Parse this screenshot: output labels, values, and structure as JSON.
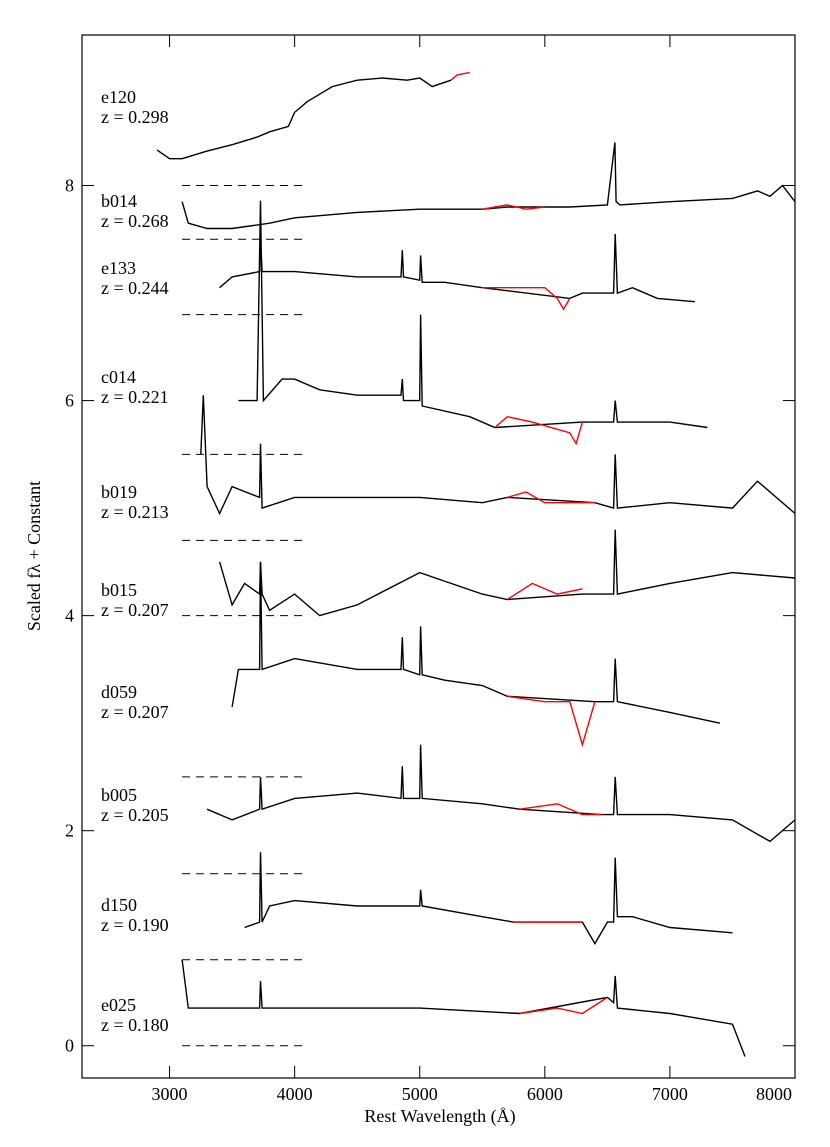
{
  "chart_data": {
    "type": "spectra",
    "xlabel": "Rest Wavelength (Å)",
    "ylabel": "Scaled fλ + Constant",
    "xlim": [
      2300,
      8000
    ],
    "ylim": [
      -0.3,
      9.4
    ],
    "xticks": [
      3000,
      4000,
      5000,
      6000,
      7000,
      8000
    ],
    "yticks": [
      0,
      2,
      4,
      6,
      8
    ],
    "baselines": [
      8.0,
      7.5,
      6.8,
      5.5,
      4.7,
      4.0,
      2.5,
      1.6,
      0.8,
      0.0
    ],
    "baseline_xrange": [
      3100,
      4100
    ],
    "series": [
      {
        "name": "e120",
        "redshift": "z = 0.298",
        "color": "#000000",
        "red_color": "#ff0000",
        "x": [
          2900,
          3000,
          3100,
          3300,
          3500,
          3700,
          3800,
          3950,
          4000,
          4100,
          4300,
          4500,
          4700,
          4900,
          5000,
          5100,
          5250
        ],
        "values": [
          8.33,
          8.25,
          8.25,
          8.32,
          8.38,
          8.45,
          8.5,
          8.55,
          8.68,
          8.78,
          8.92,
          8.98,
          9.0,
          8.98,
          9.0,
          8.92,
          8.98
        ],
        "red_x": [
          5250,
          5300,
          5400
        ],
        "red_values": [
          8.98,
          9.03,
          9.05
        ]
      },
      {
        "name": "b014",
        "redshift": "z = 0.268",
        "color": "#000000",
        "red_color": "#ff0000",
        "x": [
          3100,
          3150,
          3300,
          3500,
          3800,
          4000,
          4500,
          5000,
          5500,
          5700,
          6000,
          6200,
          6500,
          6560,
          6570,
          6600,
          7000,
          7500,
          7700,
          7800,
          7900,
          8000
        ],
        "values": [
          7.85,
          7.65,
          7.6,
          7.6,
          7.65,
          7.7,
          7.75,
          7.78,
          7.78,
          7.8,
          7.8,
          7.8,
          7.82,
          8.4,
          7.85,
          7.82,
          7.85,
          7.88,
          7.95,
          7.9,
          8.0,
          7.85
        ],
        "red_x": [
          5500,
          5700,
          5850,
          6000
        ],
        "red_values": [
          7.78,
          7.82,
          7.78,
          7.8
        ]
      },
      {
        "name": "e133",
        "redshift": "z = 0.244",
        "color": "#000000",
        "red_color": "#ff0000",
        "x": [
          3400,
          3500,
          3720,
          3727,
          3740,
          4000,
          4500,
          4850,
          4861,
          4870,
          5000,
          5007,
          5020,
          5200,
          5500,
          6200,
          6300,
          6550,
          6563,
          6580,
          6700,
          6900,
          7200
        ],
        "values": [
          7.05,
          7.15,
          7.2,
          7.5,
          7.2,
          7.2,
          7.15,
          7.15,
          7.4,
          7.15,
          7.12,
          7.35,
          7.1,
          7.1,
          7.05,
          6.95,
          7.0,
          7.0,
          7.55,
          7.0,
          7.05,
          6.95,
          6.92
        ],
        "red_x": [
          5500,
          5700,
          6000,
          6100,
          6150,
          6200
        ],
        "red_values": [
          7.05,
          7.05,
          7.05,
          6.95,
          6.85,
          6.95
        ]
      },
      {
        "name": "c014",
        "redshift": "z = 0.221",
        "color": "#000000",
        "red_color": "#ff0000",
        "x": [
          3550,
          3700,
          3727,
          3750,
          3900,
          4000,
          4200,
          4500,
          4850,
          4861,
          4870,
          5000,
          5007,
          5020,
          5400,
          5600,
          6300,
          6550,
          6563,
          6580,
          7000,
          7300
        ],
        "values": [
          6.0,
          6.0,
          7.86,
          6.0,
          6.2,
          6.2,
          6.1,
          6.05,
          6.05,
          6.2,
          6.0,
          6.0,
          6.8,
          5.95,
          5.85,
          5.75,
          5.8,
          5.8,
          6.0,
          5.8,
          5.8,
          5.75
        ],
        "red_x": [
          5600,
          5700,
          5900,
          6200,
          6250,
          6300
        ],
        "red_values": [
          5.75,
          5.85,
          5.8,
          5.7,
          5.6,
          5.8
        ]
      },
      {
        "name": "b019",
        "redshift": "z = 0.213",
        "color": "#000000",
        "red_color": "#ff0000",
        "x": [
          3250,
          3270,
          3300,
          3400,
          3500,
          3720,
          3727,
          3740,
          4000,
          4500,
          5000,
          5500,
          5700,
          6400,
          6550,
          6563,
          6580,
          7000,
          7500,
          7700,
          8000
        ],
        "values": [
          5.5,
          6.05,
          5.2,
          4.95,
          5.2,
          5.1,
          5.6,
          5.0,
          5.1,
          5.1,
          5.1,
          5.05,
          5.1,
          5.05,
          5.0,
          5.5,
          5.0,
          5.05,
          5.0,
          5.25,
          4.95
        ],
        "red_x": [
          5700,
          5850,
          6000,
          6300,
          6400
        ],
        "red_values": [
          5.1,
          5.15,
          5.05,
          5.05,
          5.05
        ]
      },
      {
        "name": "b015",
        "redshift": "z = 0.207",
        "color": "#000000",
        "red_color": "#ff0000",
        "x": [
          3400,
          3500,
          3600,
          3720,
          3727,
          3740,
          3800,
          4000,
          4200,
          4500,
          5000,
          5500,
          5700,
          6300,
          6550,
          6563,
          6580,
          7000,
          7500,
          8000
        ],
        "values": [
          4.5,
          4.1,
          4.3,
          4.2,
          4.5,
          4.2,
          4.05,
          4.2,
          4.0,
          4.1,
          4.4,
          4.2,
          4.15,
          4.2,
          4.2,
          4.8,
          4.2,
          4.3,
          4.4,
          4.35
        ],
        "red_x": [
          5700,
          5900,
          6100,
          6300
        ],
        "red_values": [
          4.15,
          4.3,
          4.2,
          4.25
        ]
      },
      {
        "name": "d059",
        "redshift": "z = 0.207",
        "color": "#000000",
        "red_color": "#ff0000",
        "x": [
          3500,
          3550,
          3720,
          3727,
          3740,
          4000,
          4500,
          4850,
          4861,
          4870,
          5000,
          5007,
          5020,
          5200,
          5500,
          5700,
          6400,
          6550,
          6563,
          6580,
          7000,
          7400
        ],
        "values": [
          3.15,
          3.5,
          3.5,
          4.5,
          3.5,
          3.6,
          3.5,
          3.5,
          3.8,
          3.5,
          3.45,
          3.9,
          3.45,
          3.4,
          3.35,
          3.25,
          3.2,
          3.2,
          3.6,
          3.2,
          3.1,
          3.0
        ],
        "red_x": [
          5700,
          6000,
          6200,
          6300,
          6400
        ],
        "red_values": [
          3.25,
          3.2,
          3.2,
          2.8,
          3.2
        ]
      },
      {
        "name": "b005",
        "redshift": "z = 0.205",
        "color": "#000000",
        "red_color": "#ff0000",
        "x": [
          3300,
          3500,
          3720,
          3727,
          3740,
          4000,
          4500,
          4850,
          4861,
          4870,
          5000,
          5007,
          5020,
          5500,
          5800,
          6450,
          6550,
          6563,
          6580,
          7000,
          7500,
          7800,
          8000
        ],
        "values": [
          2.2,
          2.1,
          2.2,
          2.5,
          2.2,
          2.3,
          2.35,
          2.3,
          2.6,
          2.3,
          2.3,
          2.8,
          2.3,
          2.25,
          2.2,
          2.15,
          2.15,
          2.5,
          2.15,
          2.15,
          2.1,
          1.9,
          2.1
        ],
        "red_x": [
          5800,
          6100,
          6300,
          6450
        ],
        "red_values": [
          2.2,
          2.25,
          2.15,
          2.15
        ]
      },
      {
        "name": "d150",
        "redshift": "z = 0.190",
        "color": "#000000",
        "red_color": "#ff0000",
        "x": [
          3600,
          3720,
          3727,
          3740,
          3800,
          4000,
          4500,
          5000,
          5007,
          5020,
          5500,
          5750,
          6300,
          6400,
          6500,
          6550,
          6563,
          6580,
          6700,
          7000,
          7500
        ],
        "values": [
          1.1,
          1.15,
          1.8,
          1.15,
          1.3,
          1.35,
          1.3,
          1.3,
          1.45,
          1.3,
          1.2,
          1.15,
          1.15,
          0.95,
          1.15,
          1.15,
          1.75,
          1.2,
          1.2,
          1.1,
          1.05
        ],
        "red_x": [
          5750,
          6000,
          6300
        ],
        "red_values": [
          1.15,
          1.15,
          1.15
        ]
      },
      {
        "name": "e025",
        "redshift": "z = 0.180",
        "color": "#000000",
        "red_color": "#ff0000",
        "x": [
          3100,
          3150,
          3500,
          3720,
          3727,
          3740,
          4000,
          4500,
          5000,
          5800,
          6500,
          6550,
          6563,
          6580,
          7000,
          7500,
          7600
        ],
        "values": [
          0.8,
          0.35,
          0.35,
          0.35,
          0.6,
          0.35,
          0.35,
          0.35,
          0.35,
          0.3,
          0.45,
          0.4,
          0.65,
          0.35,
          0.3,
          0.2,
          -0.1
        ],
        "red_x": [
          5800,
          6100,
          6300,
          6500
        ],
        "red_values": [
          0.3,
          0.35,
          0.3,
          0.45
        ]
      }
    ]
  }
}
